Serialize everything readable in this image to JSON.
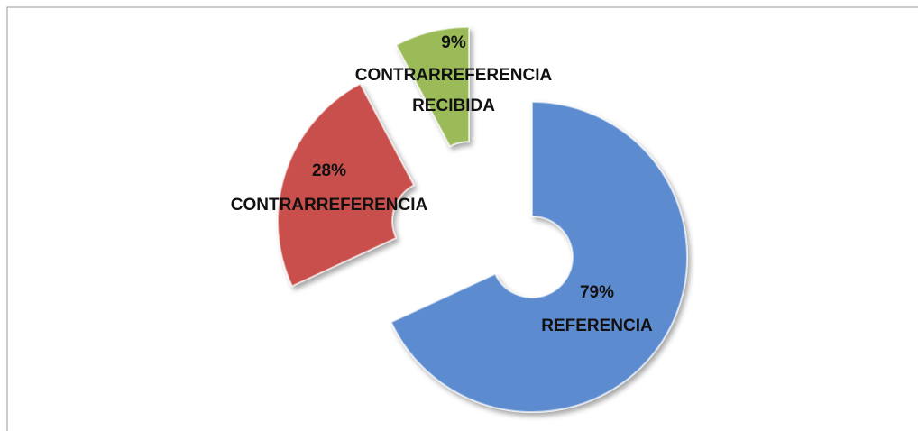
{
  "chart_data": {
    "type": "doughnut",
    "categories": [
      "REFERENCIA",
      "CONTRARREFERENCIA",
      "CONTRARREFERENCIA RECIBIDA"
    ],
    "values": [
      79,
      28,
      9
    ],
    "value_labels": [
      "79%",
      "28%",
      "9%"
    ],
    "colors": [
      "#5b8bd0",
      "#c9504d",
      "#9bbb59"
    ]
  }
}
